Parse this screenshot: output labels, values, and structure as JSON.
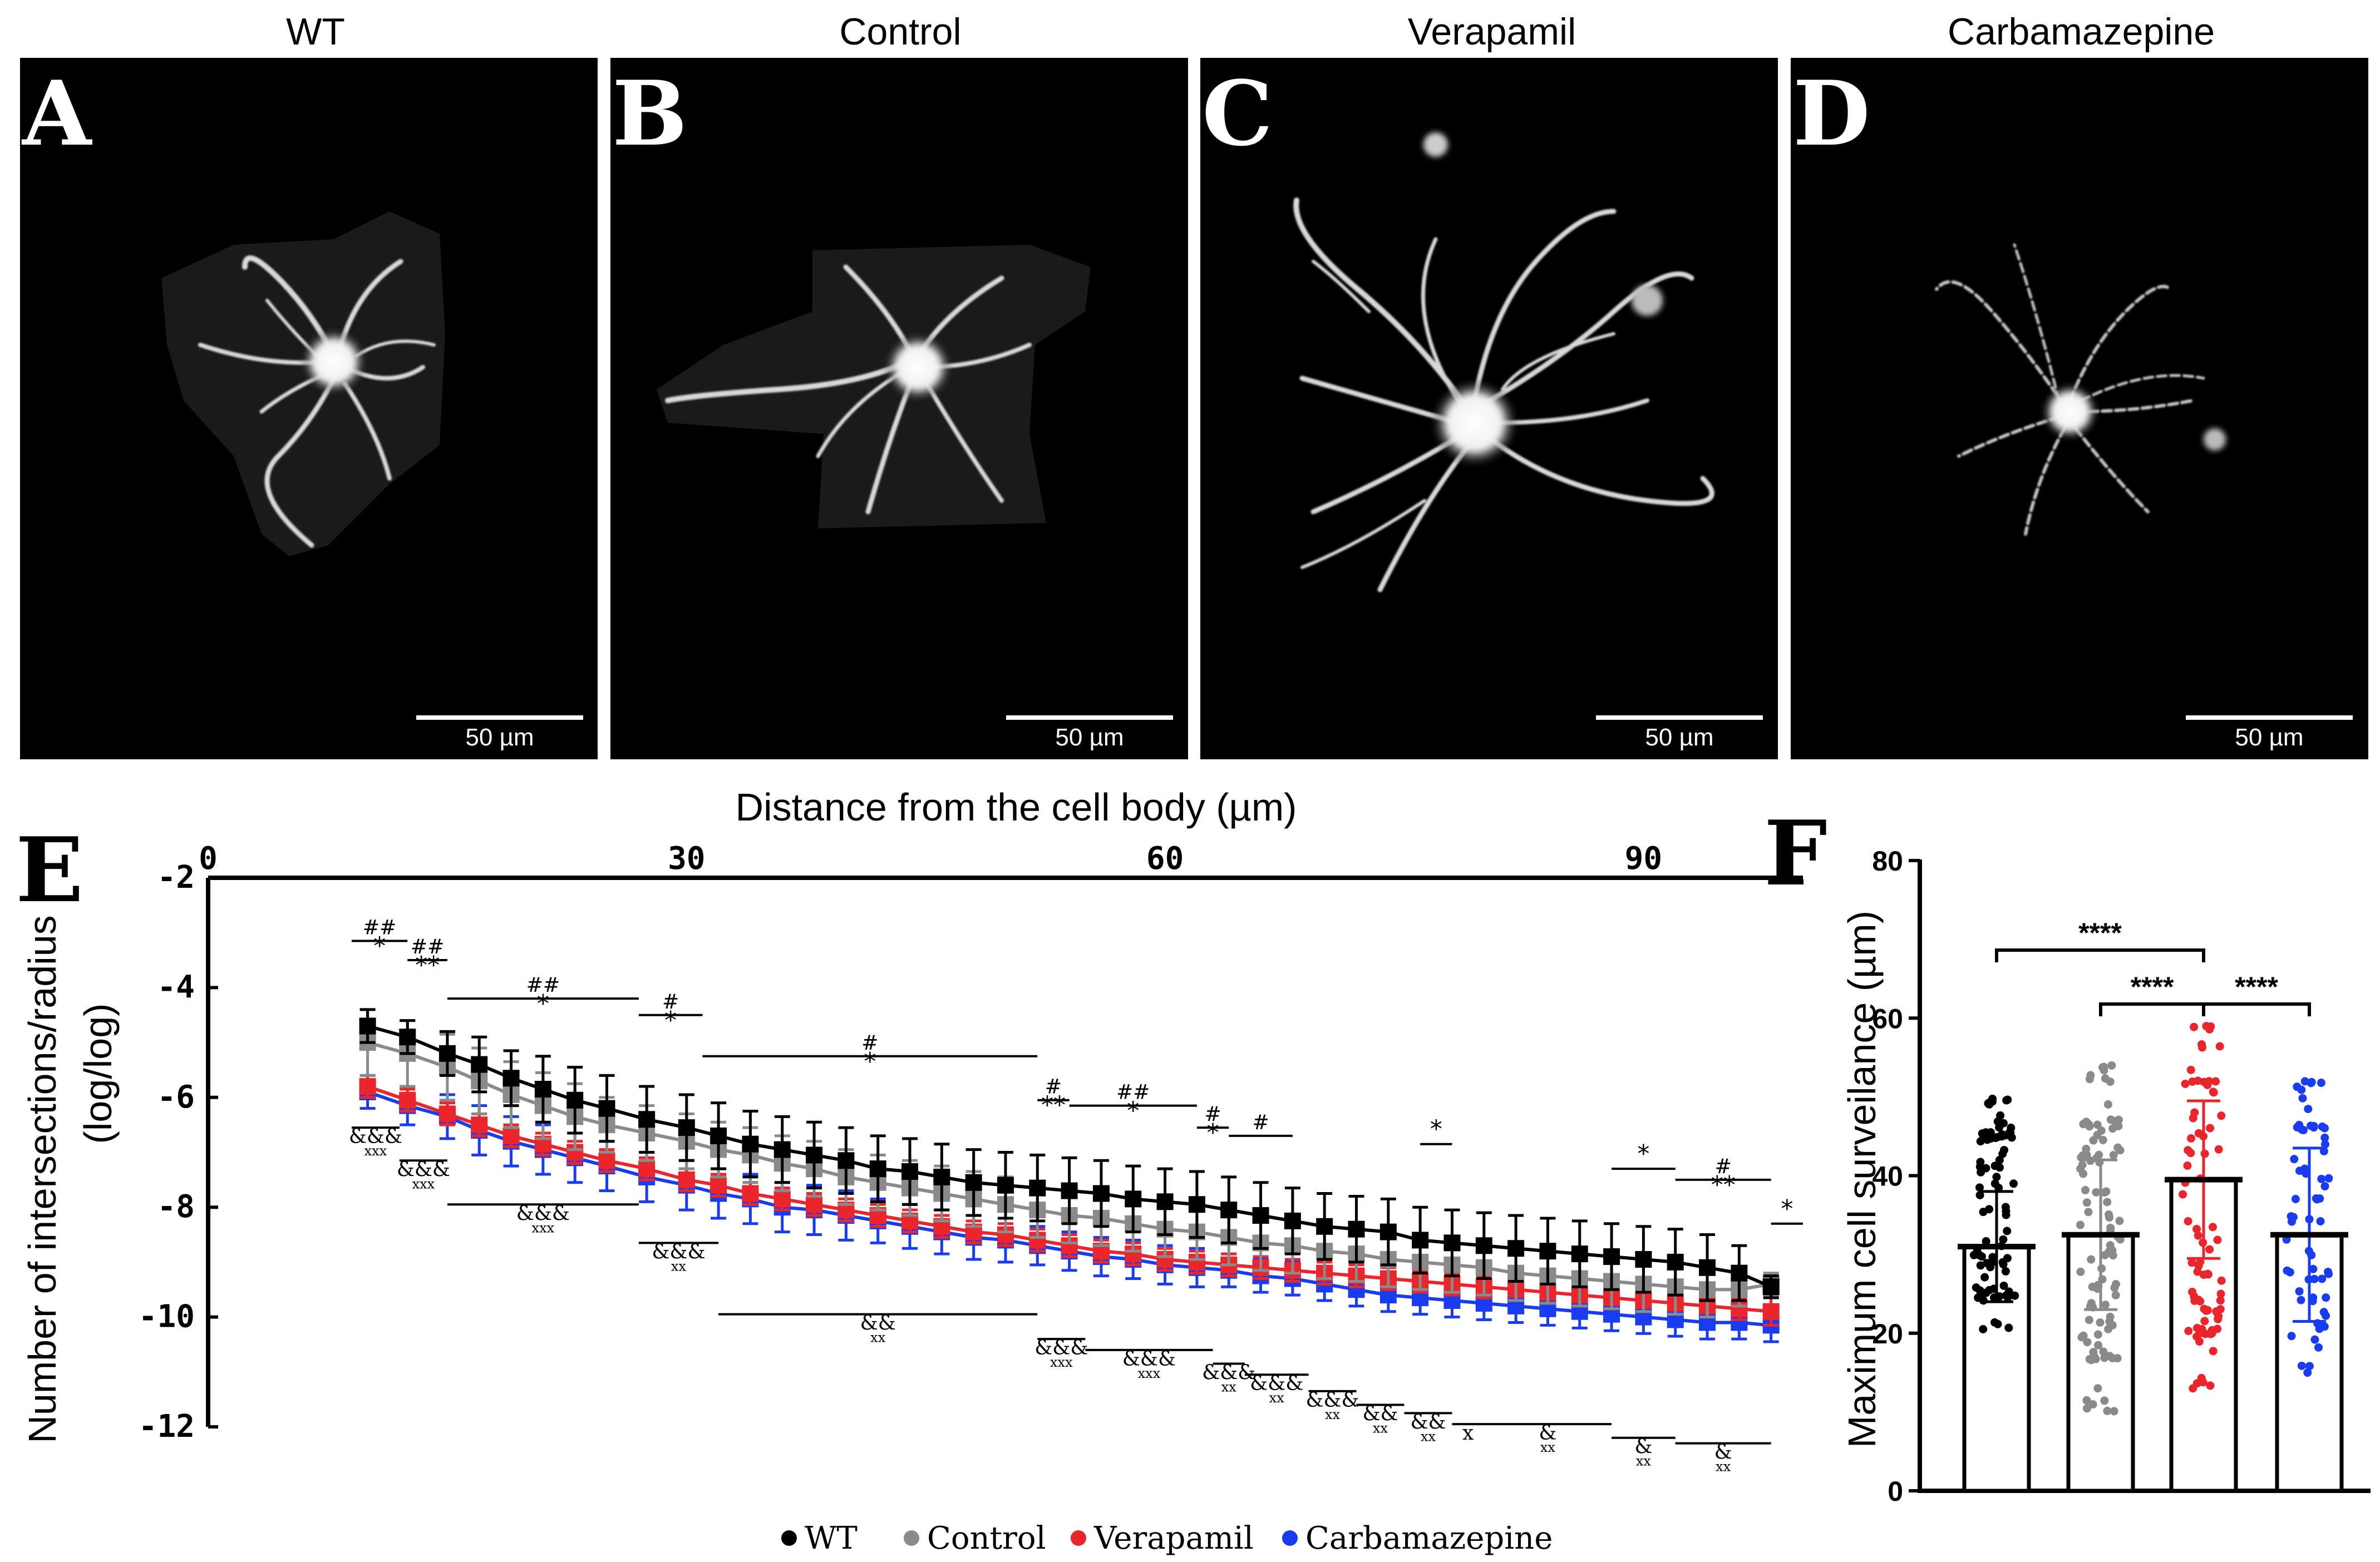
{
  "panels": [
    {
      "letter": "A",
      "title": "WT",
      "scale_label": "50 µm"
    },
    {
      "letter": "B",
      "title": "Control",
      "scale_label": "50 µm"
    },
    {
      "letter": "C",
      "title": "Verapamil",
      "scale_label": "50 µm"
    },
    {
      "letter": "D",
      "title": "Carbamazepine",
      "scale_label": "50 µm"
    }
  ],
  "chart_data": [
    {
      "panel": "E",
      "type": "line",
      "title": "Distance from the cell body (µm)",
      "xlabel": "Distance from the cell body (µm)",
      "ylabel": "Number of intersections/radius (log/log)",
      "xlim": [
        0,
        100
      ],
      "ylim": [
        -12,
        -2
      ],
      "xticks": [
        "0",
        "30",
        "60",
        "90"
      ],
      "xtick_values": [
        0,
        30,
        60,
        90
      ],
      "yticks": [
        "-2",
        "-4",
        "-6",
        "-8",
        "-10",
        "-12"
      ],
      "ytick_values": [
        -2,
        -4,
        -6,
        -8,
        -10,
        -12
      ],
      "x": [
        10,
        12.5,
        15,
        17,
        19,
        21,
        23,
        25,
        27.5,
        30,
        32,
        34,
        36,
        38,
        40,
        42,
        44,
        46,
        48,
        50,
        52,
        54,
        56,
        58,
        60,
        62,
        64,
        66,
        68,
        70,
        72,
        74,
        76,
        78,
        80,
        82,
        84,
        86,
        88,
        90,
        92,
        94,
        96,
        98
      ],
      "series": [
        {
          "name": "WT",
          "color": "#000000",
          "values": [
            -4.7,
            -4.9,
            -5.2,
            -5.4,
            -5.65,
            -5.85,
            -6.05,
            -6.2,
            -6.4,
            -6.55,
            -6.7,
            -6.85,
            -6.95,
            -7.05,
            -7.15,
            -7.3,
            -7.35,
            -7.45,
            -7.55,
            -7.6,
            -7.65,
            -7.7,
            -7.75,
            -7.85,
            -7.9,
            -7.95,
            -8.05,
            -8.15,
            -8.25,
            -8.35,
            -8.4,
            -8.45,
            -8.6,
            -8.65,
            -8.7,
            -8.75,
            -8.8,
            -8.85,
            -8.9,
            -8.95,
            -9.0,
            -9.1,
            -9.2,
            -9.45
          ],
          "errors": [
            0.3,
            0.3,
            0.4,
            0.5,
            0.5,
            0.6,
            0.6,
            0.6,
            0.6,
            0.6,
            0.6,
            0.6,
            0.6,
            0.6,
            0.6,
            0.6,
            0.6,
            0.6,
            0.6,
            0.6,
            0.6,
            0.6,
            0.6,
            0.6,
            0.6,
            0.6,
            0.6,
            0.6,
            0.6,
            0.6,
            0.6,
            0.6,
            0.6,
            0.6,
            0.6,
            0.6,
            0.6,
            0.6,
            0.6,
            0.6,
            0.6,
            0.6,
            0.5,
            0.2
          ]
        },
        {
          "name": "Control",
          "color": "#8a8a8a",
          "values": [
            -5.0,
            -5.2,
            -5.45,
            -5.7,
            -5.95,
            -6.15,
            -6.35,
            -6.5,
            -6.65,
            -6.8,
            -6.95,
            -7.05,
            -7.2,
            -7.3,
            -7.45,
            -7.55,
            -7.65,
            -7.75,
            -7.85,
            -7.95,
            -8.05,
            -8.15,
            -8.2,
            -8.3,
            -8.4,
            -8.45,
            -8.55,
            -8.65,
            -8.7,
            -8.8,
            -8.85,
            -8.95,
            -9.0,
            -9.05,
            -9.1,
            -9.2,
            -9.25,
            -9.3,
            -9.35,
            -9.4,
            -9.45,
            -9.5,
            -9.5,
            -9.4
          ],
          "errors": [
            0.6,
            0.6,
            0.6,
            0.6,
            0.6,
            0.6,
            0.6,
            0.5,
            0.5,
            0.5,
            0.5,
            0.5,
            0.5,
            0.5,
            0.5,
            0.5,
            0.5,
            0.5,
            0.5,
            0.5,
            0.5,
            0.5,
            0.5,
            0.5,
            0.5,
            0.5,
            0.5,
            0.5,
            0.5,
            0.5,
            0.5,
            0.5,
            0.5,
            0.5,
            0.5,
            0.5,
            0.5,
            0.5,
            0.5,
            0.5,
            0.5,
            0.5,
            0.3,
            0.2
          ]
        },
        {
          "name": "Verapamil",
          "color": "#e8262b",
          "values": [
            -5.8,
            -6.05,
            -6.3,
            -6.5,
            -6.7,
            -6.85,
            -7.0,
            -7.15,
            -7.3,
            -7.5,
            -7.6,
            -7.75,
            -7.85,
            -7.95,
            -8.05,
            -8.15,
            -8.25,
            -8.35,
            -8.45,
            -8.5,
            -8.6,
            -8.7,
            -8.8,
            -8.85,
            -8.95,
            -9.0,
            -9.05,
            -9.1,
            -9.15,
            -9.2,
            -9.25,
            -9.3,
            -9.35,
            -9.4,
            -9.45,
            -9.5,
            -9.55,
            -9.6,
            -9.65,
            -9.7,
            -9.75,
            -9.8,
            -9.85,
            -9.9
          ],
          "errors": [
            0.2,
            0.2,
            0.2,
            0.2,
            0.2,
            0.2,
            0.2,
            0.2,
            0.2,
            0.2,
            0.2,
            0.2,
            0.2,
            0.2,
            0.2,
            0.2,
            0.2,
            0.2,
            0.2,
            0.2,
            0.2,
            0.2,
            0.2,
            0.2,
            0.2,
            0.2,
            0.2,
            0.2,
            0.2,
            0.2,
            0.2,
            0.2,
            0.2,
            0.2,
            0.2,
            0.2,
            0.2,
            0.2,
            0.2,
            0.2,
            0.2,
            0.2,
            0.2,
            0.25
          ]
        },
        {
          "name": "Carbamazepine",
          "color": "#1a3cf0",
          "values": [
            -5.9,
            -6.15,
            -6.35,
            -6.6,
            -6.8,
            -6.95,
            -7.1,
            -7.25,
            -7.45,
            -7.6,
            -7.75,
            -7.85,
            -8.0,
            -8.05,
            -8.15,
            -8.25,
            -8.35,
            -8.45,
            -8.55,
            -8.6,
            -8.7,
            -8.8,
            -8.9,
            -8.95,
            -9.05,
            -9.1,
            -9.15,
            -9.25,
            -9.3,
            -9.4,
            -9.5,
            -9.6,
            -9.65,
            -9.7,
            -9.75,
            -9.8,
            -9.85,
            -9.9,
            -9.95,
            -10.0,
            -10.05,
            -10.1,
            -10.1,
            -10.15
          ],
          "errors": [
            0.3,
            0.35,
            0.4,
            0.45,
            0.45,
            0.45,
            0.45,
            0.45,
            0.45,
            0.45,
            0.45,
            0.45,
            0.45,
            0.45,
            0.45,
            0.4,
            0.4,
            0.4,
            0.4,
            0.4,
            0.35,
            0.35,
            0.35,
            0.35,
            0.35,
            0.35,
            0.3,
            0.3,
            0.3,
            0.3,
            0.3,
            0.3,
            0.3,
            0.3,
            0.3,
            0.3,
            0.3,
            0.3,
            0.3,
            0.3,
            0.3,
            0.3,
            0.3,
            0.3
          ]
        }
      ],
      "annotations_above": [
        {
          "x1": 9,
          "x2": 12.5,
          "y": -3.15,
          "labels": [
            "##",
            "*"
          ]
        },
        {
          "x1": 12.5,
          "x2": 15,
          "y": -3.5,
          "labels": [
            "##",
            "**"
          ]
        },
        {
          "x1": 15,
          "x2": 27,
          "y": -4.2,
          "labels": [
            "##",
            "*"
          ]
        },
        {
          "x1": 27,
          "x2": 31,
          "y": -4.5,
          "labels": [
            "#",
            "*"
          ]
        },
        {
          "x1": 31,
          "x2": 52,
          "y": -5.25,
          "labels": [
            "#",
            "*"
          ]
        },
        {
          "x1": 52,
          "x2": 54,
          "y": -6.05,
          "labels": [
            "#",
            "**"
          ]
        },
        {
          "x1": 54,
          "x2": 62,
          "y": -6.15,
          "labels": [
            "##",
            "*"
          ]
        },
        {
          "x1": 62,
          "x2": 64,
          "y": -6.55,
          "labels": [
            "#",
            "*"
          ]
        },
        {
          "x1": 64,
          "x2": 68,
          "y": -6.7,
          "labels": [
            "#"
          ]
        },
        {
          "x1": 76,
          "x2": 78,
          "y": -6.85,
          "labels": [
            "*"
          ]
        },
        {
          "x1": 88,
          "x2": 92,
          "y": -7.3,
          "labels": [
            "*"
          ]
        },
        {
          "x1": 92,
          "x2": 98,
          "y": -7.5,
          "labels": [
            "#",
            "**"
          ]
        },
        {
          "x1": 98,
          "x2": 100,
          "y": -8.3,
          "labels": [
            "*"
          ]
        }
      ],
      "annotations_below": [
        {
          "x1": 9,
          "x2": 12,
          "y": -6.55,
          "labels": [
            "&&&",
            "xxx"
          ]
        },
        {
          "x1": 12,
          "x2": 15,
          "y": -7.15,
          "labels": [
            "&&&",
            "xxx"
          ]
        },
        {
          "x1": 15,
          "x2": 27,
          "y": -7.95,
          "labels": [
            "&&&",
            "xxx"
          ]
        },
        {
          "x1": 27,
          "x2": 32,
          "y": -8.65,
          "labels": [
            "&&&",
            "xx"
          ]
        },
        {
          "x1": 32,
          "x2": 52,
          "y": -9.95,
          "labels": [
            "&&",
            "xx"
          ]
        },
        {
          "x1": 52,
          "x2": 55,
          "y": -10.4,
          "labels": [
            "&&&",
            "xxx"
          ]
        },
        {
          "x1": 55,
          "x2": 63,
          "y": -10.6,
          "labels": [
            "&&&",
            "xxx"
          ]
        },
        {
          "x1": 63,
          "x2": 65,
          "y": -10.85,
          "labels": [
            "&&&",
            "xx"
          ]
        },
        {
          "x1": 65,
          "x2": 69,
          "y": -11.05,
          "labels": [
            "&&&",
            "xx"
          ]
        },
        {
          "x1": 69,
          "x2": 72,
          "y": -11.35,
          "labels": [
            "&&&",
            "xx"
          ]
        },
        {
          "x1": 72,
          "x2": 75,
          "y": -11.6,
          "labels": [
            "&&",
            "xx"
          ]
        },
        {
          "x1": 75,
          "x2": 78,
          "y": -11.75,
          "labels": [
            "&&",
            "xx"
          ]
        },
        {
          "x1": 78,
          "x2": 80,
          "y": -11.95,
          "labels": [
            "x"
          ]
        },
        {
          "x1": 80,
          "x2": 88,
          "y": -11.95,
          "labels": [
            "&",
            "xx"
          ]
        },
        {
          "x1": 88,
          "x2": 92,
          "y": -12.2,
          "labels": [
            "&",
            "xx"
          ]
        },
        {
          "x1": 92,
          "x2": 98,
          "y": -12.3,
          "labels": [
            "&",
            "xx"
          ]
        }
      ],
      "legend": [
        "WT",
        "Control",
        "Verapamil",
        "Carbamazepine"
      ]
    },
    {
      "panel": "F",
      "type": "bar",
      "ylabel": "Maximum cell surveilance (µm)",
      "ylim": [
        0,
        80
      ],
      "yticks": [
        "0",
        "20",
        "40",
        "60",
        "80"
      ],
      "ytick_values": [
        0,
        20,
        40,
        60,
        80
      ],
      "categories": [
        "WT",
        "Control",
        "Verapamil",
        "Carbamazepine"
      ],
      "values": [
        31,
        32.5,
        39.5,
        32.5
      ],
      "errors": [
        7,
        9.5,
        10,
        11
      ],
      "colors": [
        "#000000",
        "#8a8a8a",
        "#e8262b",
        "#1a3cf0"
      ],
      "n_points": [
        90,
        100,
        80,
        65
      ],
      "point_ranges": [
        [
          20,
          50
        ],
        [
          10,
          54
        ],
        [
          13,
          59
        ],
        [
          15,
          52
        ]
      ],
      "significance": [
        {
          "from": 0,
          "to": 2,
          "label": "****"
        },
        {
          "from": 1,
          "to": 2,
          "label": "****"
        },
        {
          "from": 2,
          "to": 3,
          "label": "****"
        }
      ]
    }
  ]
}
